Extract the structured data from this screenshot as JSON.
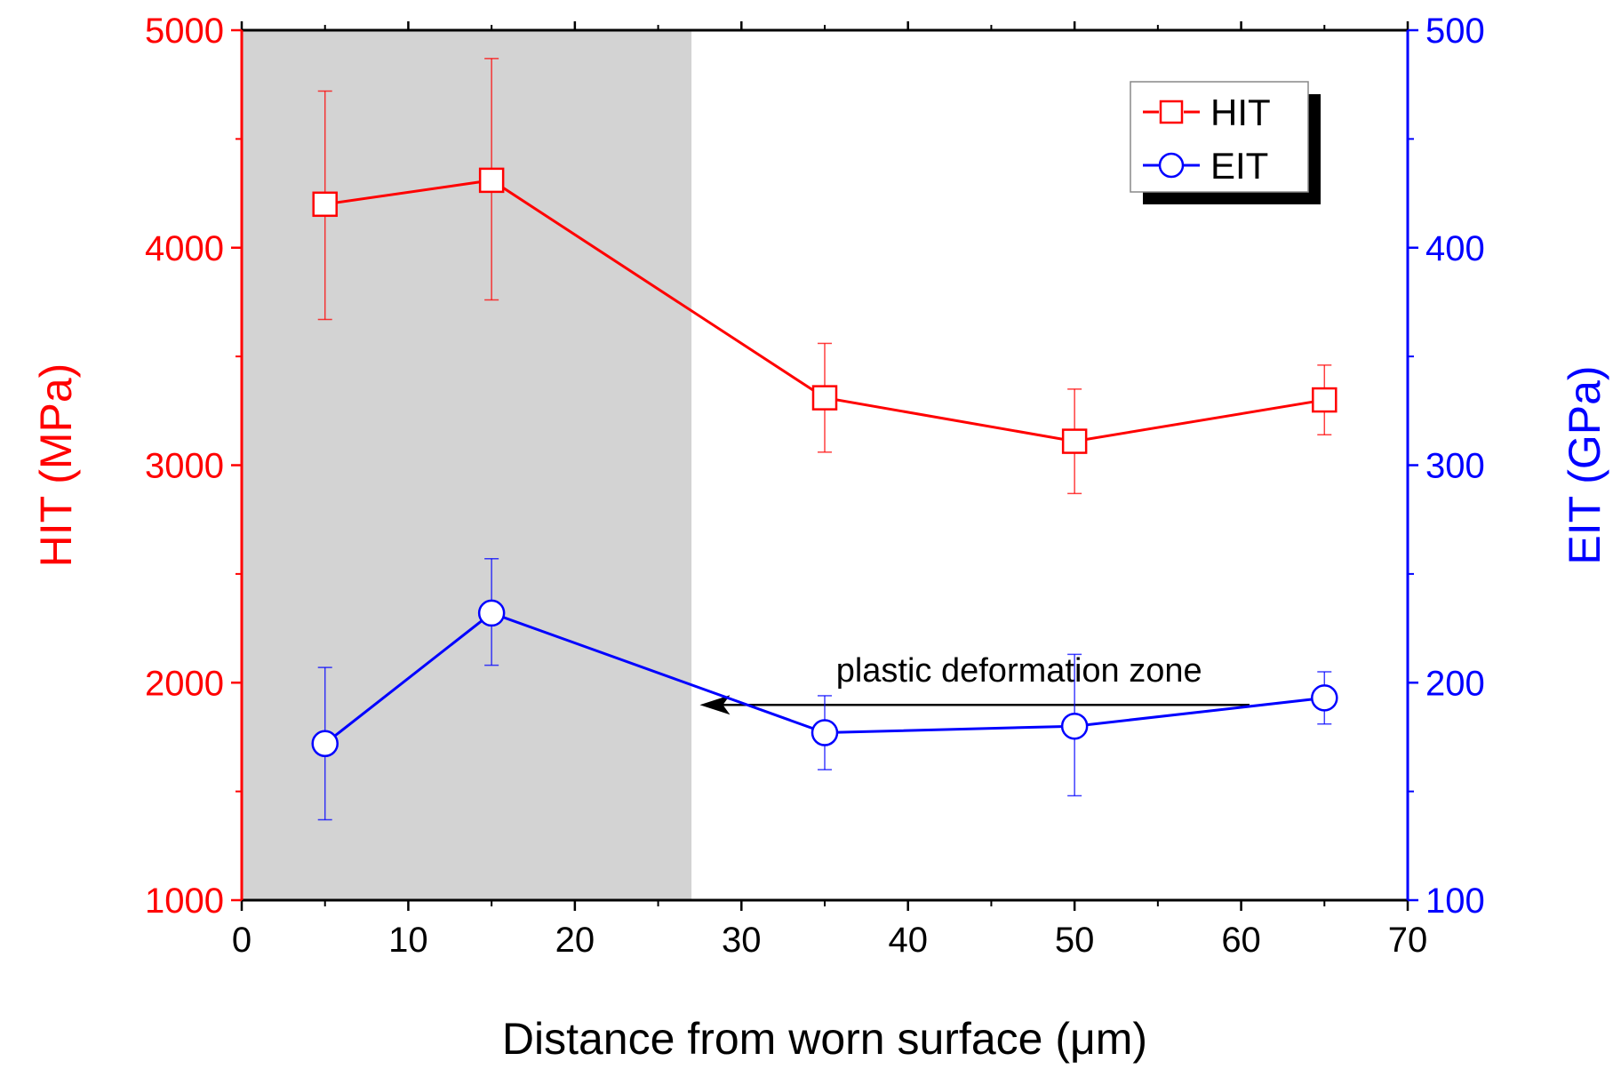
{
  "chart_data": {
    "type": "line",
    "title": "",
    "xlabel": "Distance from worn surface (μm)",
    "ylabel_left": "HIT (MPa)",
    "ylabel_right": "EIT (GPa)",
    "xlim": [
      0,
      70
    ],
    "ylim_left": [
      1000,
      5000
    ],
    "ylim_right": [
      100,
      500
    ],
    "x_ticks": [
      0,
      10,
      20,
      30,
      40,
      50,
      60,
      70
    ],
    "y_ticks_left": [
      1000,
      2000,
      3000,
      4000,
      5000
    ],
    "y_ticks_right": [
      100,
      200,
      300,
      400,
      500
    ],
    "grid": false,
    "legend_position": "top-right",
    "shaded_region": {
      "x_range": [
        0,
        27
      ],
      "color": "#d3d3d3"
    },
    "annotation": {
      "text": "plastic deformation zone",
      "arrow_from_x": 60.5,
      "arrow_to_x": 27.5,
      "y_left": 2470
    },
    "colors": {
      "hit": "#ff0000",
      "eit": "#0000ff",
      "axis": "#000000"
    },
    "series": [
      {
        "name": "HIT",
        "axis": "left",
        "marker": "square",
        "x": [
          5,
          15,
          35,
          50,
          65
        ],
        "values": [
          4200,
          4310,
          3310,
          3110,
          3300
        ],
        "error_low": [
          3670,
          3760,
          3060,
          2870,
          3140
        ],
        "error_high": [
          4720,
          4870,
          3560,
          3350,
          3460
        ]
      },
      {
        "name": "EIT",
        "axis": "right",
        "marker": "circle",
        "x": [
          5,
          15,
          35,
          50,
          65
        ],
        "values": [
          172,
          232,
          177,
          180,
          193
        ],
        "error_low": [
          137,
          208,
          160,
          148,
          181
        ],
        "error_high": [
          207,
          257,
          194,
          213,
          205
        ]
      }
    ]
  }
}
